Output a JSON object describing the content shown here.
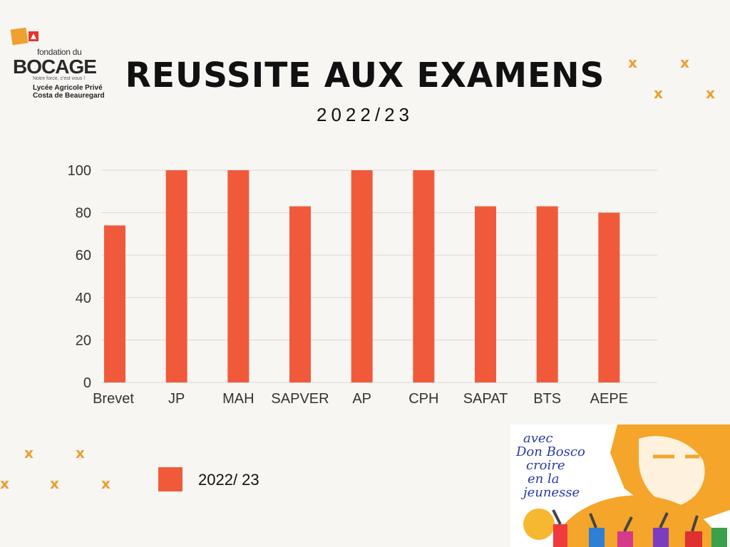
{
  "logo": {
    "fondation": "fondation du",
    "name": "BOCAGE",
    "motto": "Notre force, c'est vous !",
    "school_line1": "Lycée Agricole Privé",
    "school_line2": "Costa de Beauregard"
  },
  "title": "REUSSITE AUX EXAMENS",
  "subtitle": "2022/23",
  "decoration": {
    "mark_glyph": "x",
    "mark_color": "#e8a030"
  },
  "legend": {
    "label": "2022/ 23"
  },
  "poster": {
    "line1": "avec",
    "line2": "Don Bosco",
    "line3": "croire",
    "line4": "en la",
    "line5": "jeunesse"
  },
  "colors": {
    "bar": "#f05a3a",
    "grid": "#d9d8d4",
    "background": "#f7f6f2"
  },
  "chart_data": {
    "type": "bar",
    "categories": [
      "Brevet",
      "JP",
      "MAH",
      "SAPVER",
      "AP",
      "CPH",
      "SAPAT",
      "BTS",
      "AEPE"
    ],
    "series": [
      {
        "name": "2022/ 23",
        "values": [
          74,
          100,
          100,
          83,
          100,
          100,
          83,
          83,
          80
        ]
      }
    ],
    "title": "REUSSITE AUX EXAMENS",
    "subtitle": "2022/23",
    "xlabel": "",
    "ylabel": "",
    "ylim": [
      0,
      100
    ],
    "yticks": [
      0,
      20,
      40,
      60,
      80,
      100
    ],
    "grid": true,
    "legend_position": "bottom-left"
  }
}
